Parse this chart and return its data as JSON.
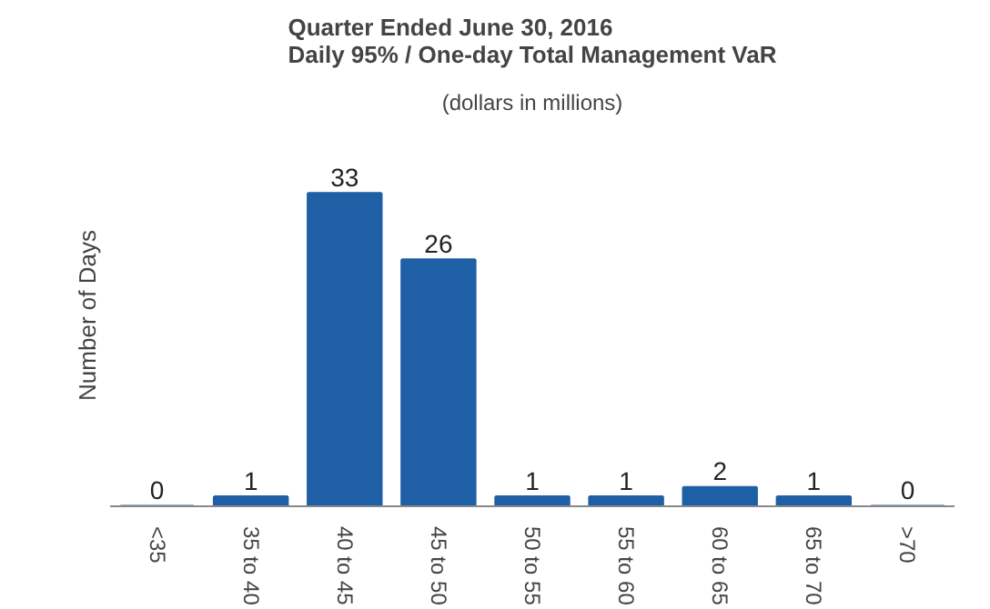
{
  "chart_data": {
    "type": "bar",
    "title": "Quarter Ended June 30, 2016\nDaily 95% / One-day Total Management VaR",
    "subtitle": "(dollars in millions)",
    "ylabel": "Number of Days",
    "categories": [
      "<35",
      "35 to 40",
      "40 to 45",
      "45 to 50",
      "50 to 55",
      "55 to 60",
      "60 to 65",
      "65 to 70",
      ">70"
    ],
    "values": [
      0,
      1,
      33,
      26,
      1,
      1,
      2,
      1,
      0
    ],
    "color": "#1f5fa6",
    "data_labels": true,
    "tick_labels": "x",
    "grid": false
  }
}
